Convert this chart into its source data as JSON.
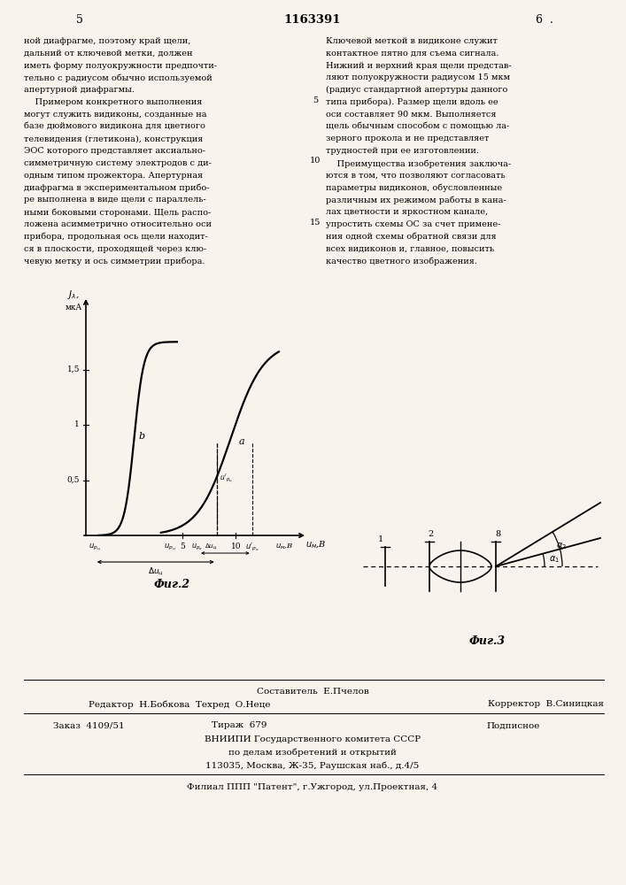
{
  "page_number_left": "5",
  "patent_number": "1163391",
  "page_number_right": "6",
  "text_left": "ной диафрагме, поэтому край щели,\nдальний от ключевой метки, должен\nиметь форму полуокружности предпочти-\nтельно с радиусом обычно используемой\nапертурной диафрагмы.\n    Примером конкретного выполнения\nмогут служить видиконы, созданные на\nбазе дюймового видикона для цветного\nтелевидения (глетикона), конструкция\nЭОС которого представляет аксиально-\nсимметричную систему электродов с ди-\nодным типом прожектора. Апертурная\nдиафрагма в экспериментальном прибо-\nре выполнена в виде щели с параллель-\nными боковыми сторонами. Щель распо-\nложена асимметрично относительно оси\nприбора, продольная ось щели находит-\nся в плоскости, проходящей через клю-\nчевую метку и ось симметрии прибора.",
  "text_right": "Ключевой меткой в видиконе служит\nконтактное пятно для съема сигнала.\nНижний и верхний края щели представ-\nляют полуокружности радиусом 15 мкм\n(радиус стандартной апертуры данного\nтипа прибора). Размер щели вдоль ее\nоси составляет 90 мкм. Выполняется\nщель обычным способом с помощью ла-\nзерного прокола и не представляет\nтрудностей при ее изготовлении.\n    Преимущества изобретения заключа-\nются в том, что позволяют согласовать\nпараметры видиконов, обусловленные\nразличным их режимом работы в кана-\nлах цветности и яркостном канале,\nупростить схемы ОС за счет примене-\nния одной схемы обратной связи для\nвсех видиконов и, главное, повысить\nкачество цветного изображения.",
  "fig2_label": "Фиг.2",
  "fig3_label": "Фиг.3",
  "footer_line1": "Составитель  Е.Пчелов",
  "footer_line2_left": "Редактор  Н.Бобкова  Техред  О.Неце",
  "footer_line2_right": "Корректор  В.Синицкая",
  "footer_line3_left": "Заказ  4109/51",
  "footer_line3_mid": "Тираж  679",
  "footer_line3_right": "Подписное",
  "footer_line4": "ВНИИПИ Государственного комитета СССР",
  "footer_line5": "по делам изобретений и открытий",
  "footer_line6": "113035, Москва, Ж-35, Раушская наб., д.4/5",
  "footer_line7": "Филиал ППП \"Патент\", г.Ужгород, ул.Проектная, 4",
  "bg_color": "#f8f4ec"
}
